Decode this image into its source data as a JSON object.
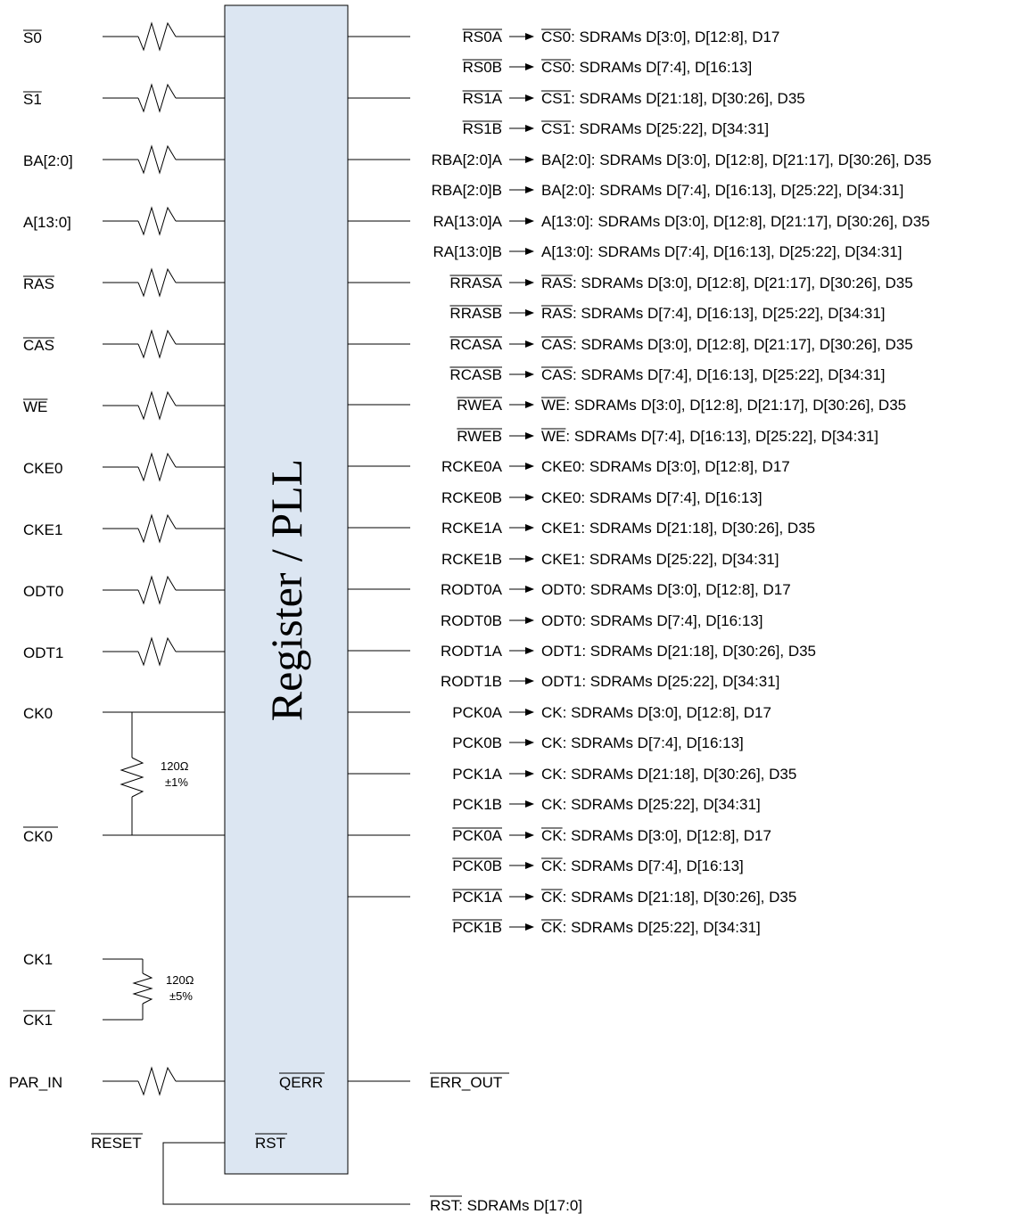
{
  "block": {
    "title": "Register / PLL",
    "fill": "#dce6f2"
  },
  "inputs": [
    {
      "label": "S0",
      "overbar": [
        0,
        2
      ]
    },
    {
      "label": "S1",
      "overbar": [
        0,
        2
      ]
    },
    {
      "label": "BA[2:0]",
      "overbar": null
    },
    {
      "label": "A[13:0]",
      "overbar": null
    },
    {
      "label": "RAS",
      "overbar": [
        0,
        3
      ]
    },
    {
      "label": "CAS",
      "overbar": [
        0,
        3
      ]
    },
    {
      "label": "WE",
      "overbar": [
        0,
        2
      ]
    },
    {
      "label": "CKE0",
      "overbar": null
    },
    {
      "label": "CKE1",
      "overbar": null
    },
    {
      "label": "ODT0",
      "overbar": null
    },
    {
      "label": "ODT1",
      "overbar": null
    }
  ],
  "clock0": {
    "pos": "CK0",
    "neg": "CK0",
    "resistor": "120Ω",
    "tolerance": "±1%"
  },
  "clock1": {
    "pos": "CK1",
    "neg": "CK1",
    "resistor": "120Ω",
    "tolerance": "±5%"
  },
  "parity": {
    "input": "PAR_IN",
    "pin": "QERR",
    "output": "ERR_OUT"
  },
  "reset": {
    "input": "RESET",
    "pin": "RST",
    "output": "RST",
    "output_desc": ": SDRAMs D[17:0]"
  },
  "outputs": [
    {
      "signal": "RS0A",
      "sig_overbar": [
        0,
        4
      ],
      "dest": "CS0",
      "dest_overbar": [
        0,
        3
      ],
      "desc": ": SDRAMs D[3:0], D[12:8], D17"
    },
    {
      "signal": "RS0B",
      "sig_overbar": [
        0,
        4
      ],
      "dest": "CS0",
      "dest_overbar": [
        0,
        3
      ],
      "desc": ": SDRAMs D[7:4], D[16:13]"
    },
    {
      "signal": "RS1A",
      "sig_overbar": [
        0,
        4
      ],
      "dest": "CS1",
      "dest_overbar": [
        0,
        3
      ],
      "desc": ": SDRAMs D[21:18], D[30:26], D35"
    },
    {
      "signal": "RS1B",
      "sig_overbar": [
        0,
        4
      ],
      "dest": "CS1",
      "dest_overbar": [
        0,
        3
      ],
      "desc": ": SDRAMs D[25:22], D[34:31]"
    },
    {
      "signal": "RBA[2:0]A",
      "sig_overbar": null,
      "dest": "BA[2:0]",
      "dest_overbar": null,
      "desc": ": SDRAMs D[3:0], D[12:8], D[21:17], D[30:26], D35"
    },
    {
      "signal": "RBA[2:0]B",
      "sig_overbar": null,
      "dest": "BA[2:0]",
      "dest_overbar": null,
      "desc": ": SDRAMs D[7:4], D[16:13], D[25:22], D[34:31]"
    },
    {
      "signal": "RA[13:0]A",
      "sig_overbar": null,
      "dest": "A[13:0]",
      "dest_overbar": null,
      "desc": ": SDRAMs D[3:0], D[12:8], D[21:17], D[30:26], D35"
    },
    {
      "signal": "RA[13:0]B",
      "sig_overbar": null,
      "dest": "A[13:0]",
      "dest_overbar": null,
      "desc": ": SDRAMs D[7:4], D[16:13], D[25:22], D[34:31]"
    },
    {
      "signal": "RRASA",
      "sig_overbar": [
        0,
        5
      ],
      "dest": "RAS",
      "dest_overbar": [
        0,
        3
      ],
      "desc": ": SDRAMs D[3:0], D[12:8], D[21:17], D[30:26], D35"
    },
    {
      "signal": "RRASB",
      "sig_overbar": [
        0,
        5
      ],
      "dest": "RAS",
      "dest_overbar": [
        0,
        3
      ],
      "desc": ": SDRAMs D[7:4], D[16:13], D[25:22], D[34:31]"
    },
    {
      "signal": "RCASA",
      "sig_overbar": [
        0,
        5
      ],
      "dest": "CAS",
      "dest_overbar": [
        0,
        3
      ],
      "desc": ": SDRAMs D[3:0], D[12:8], D[21:17], D[30:26], D35"
    },
    {
      "signal": "RCASB",
      "sig_overbar": [
        0,
        5
      ],
      "dest": "CAS",
      "dest_overbar": [
        0,
        3
      ],
      "desc": ": SDRAMs D[7:4], D[16:13], D[25:22], D[34:31]"
    },
    {
      "signal": "RWEA",
      "sig_overbar": [
        0,
        4
      ],
      "dest": "WE",
      "dest_overbar": [
        0,
        2
      ],
      "desc": ": SDRAMs D[3:0], D[12:8], D[21:17], D[30:26], D35"
    },
    {
      "signal": "RWEB",
      "sig_overbar": [
        0,
        4
      ],
      "dest": "WE",
      "dest_overbar": [
        0,
        2
      ],
      "desc": ": SDRAMs D[7:4], D[16:13], D[25:22], D[34:31]"
    },
    {
      "signal": "RCKE0A",
      "sig_overbar": null,
      "dest": "CKE0",
      "dest_overbar": null,
      "desc": ": SDRAMs D[3:0], D[12:8], D17"
    },
    {
      "signal": "RCKE0B",
      "sig_overbar": null,
      "dest": "CKE0",
      "dest_overbar": null,
      "desc": ": SDRAMs D[7:4], D[16:13]"
    },
    {
      "signal": "RCKE1A",
      "sig_overbar": null,
      "dest": "CKE1",
      "dest_overbar": null,
      "desc": ": SDRAMs D[21:18], D[30:26], D35"
    },
    {
      "signal": "RCKE1B",
      "sig_overbar": null,
      "dest": "CKE1",
      "dest_overbar": null,
      "desc": ": SDRAMs D[25:22], D[34:31]"
    },
    {
      "signal": "RODT0A",
      "sig_overbar": null,
      "dest": "ODT0",
      "dest_overbar": null,
      "desc": ": SDRAMs D[3:0], D[12:8], D17"
    },
    {
      "signal": "RODT0B",
      "sig_overbar": null,
      "dest": "ODT0",
      "dest_overbar": null,
      "desc": ": SDRAMs D[7:4], D[16:13]"
    },
    {
      "signal": "RODT1A",
      "sig_overbar": null,
      "dest": "ODT1",
      "dest_overbar": null,
      "desc": ": SDRAMs D[21:18], D[30:26], D35"
    },
    {
      "signal": "RODT1B",
      "sig_overbar": null,
      "dest": "ODT1",
      "dest_overbar": null,
      "desc": ": SDRAMs D[25:22], D[34:31]"
    },
    {
      "signal": "PCK0A",
      "sig_overbar": null,
      "dest": "CK",
      "dest_overbar": null,
      "desc": ": SDRAMs D[3:0], D[12:8], D17"
    },
    {
      "signal": "PCK0B",
      "sig_overbar": null,
      "dest": "CK",
      "dest_overbar": null,
      "desc": ": SDRAMs D[7:4], D[16:13]"
    },
    {
      "signal": "PCK1A",
      "sig_overbar": null,
      "dest": "CK",
      "dest_overbar": null,
      "desc": ": SDRAMs D[21:18], D[30:26], D35"
    },
    {
      "signal": "PCK1B",
      "sig_overbar": null,
      "dest": "CK",
      "dest_overbar": null,
      "desc": ": SDRAMs D[25:22], D[34:31]"
    },
    {
      "signal": "PCK0A",
      "sig_overbar": [
        0,
        5
      ],
      "dest": "CK",
      "dest_overbar": [
        0,
        2
      ],
      "desc": ": SDRAMs D[3:0], D[12:8], D17"
    },
    {
      "signal": "PCK0B",
      "sig_overbar": [
        0,
        5
      ],
      "dest": "CK",
      "dest_overbar": [
        0,
        2
      ],
      "desc": ": SDRAMs D[7:4], D[16:13]"
    },
    {
      "signal": "PCK1A",
      "sig_overbar": [
        0,
        5
      ],
      "dest": "CK",
      "dest_overbar": [
        0,
        2
      ],
      "desc": ": SDRAMs D[21:18], D[30:26], D35"
    },
    {
      "signal": "PCK1B",
      "sig_overbar": [
        0,
        5
      ],
      "dest": "CK",
      "dest_overbar": [
        0,
        2
      ],
      "desc": ": SDRAMs D[25:22], D[34:31]"
    }
  ]
}
